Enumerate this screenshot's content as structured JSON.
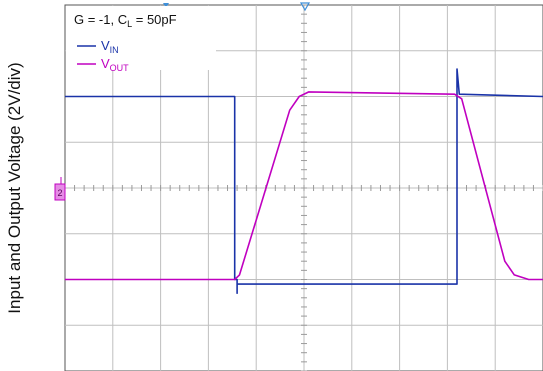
{
  "chart_data": {
    "type": "line",
    "title": "",
    "ylabel": "Input and Output Voltage (2V/div)",
    "xlabel": "",
    "grid": true,
    "legend_placement": "top-left",
    "ylim": [
      -4,
      4
    ],
    "xlim": [
      0,
      10
    ],
    "divisions": {
      "x": 10,
      "y": 8
    },
    "annotation": {
      "prefix": "G = -1, C",
      "sub": "L",
      "suffix": " = 50pF"
    },
    "series": [
      {
        "name_main": "V",
        "name_sub": "IN",
        "color": "#1a33a8",
        "points": [
          [
            0,
            2.0
          ],
          [
            3.55,
            2.0
          ],
          [
            3.55,
            -2.0
          ],
          [
            3.6,
            -2.0
          ],
          [
            3.6,
            -2.3
          ],
          [
            3.6,
            -2.1
          ],
          [
            8.2,
            -2.1
          ],
          [
            8.2,
            1.0
          ],
          [
            8.2,
            -2.1
          ],
          [
            8.2,
            2.6
          ],
          [
            8.25,
            2.05
          ],
          [
            10,
            2.0
          ]
        ]
      },
      {
        "name_main": "V",
        "name_sub": "OUT",
        "color": "#c000c0",
        "points": [
          [
            0,
            -2.0
          ],
          [
            3.55,
            -2.0
          ],
          [
            3.65,
            -1.9
          ],
          [
            4.7,
            1.7
          ],
          [
            4.9,
            2.0
          ],
          [
            5.1,
            2.1
          ],
          [
            8.15,
            2.05
          ],
          [
            8.3,
            1.95
          ],
          [
            9.2,
            -1.6
          ],
          [
            9.4,
            -1.9
          ],
          [
            9.7,
            -2.0
          ],
          [
            10,
            -2.0
          ]
        ]
      }
    ],
    "channel_marker_label": "2",
    "colors": {
      "grid": "#bfbfbf",
      "frame": "#555555",
      "trigger": "#3f8fd8"
    }
  }
}
